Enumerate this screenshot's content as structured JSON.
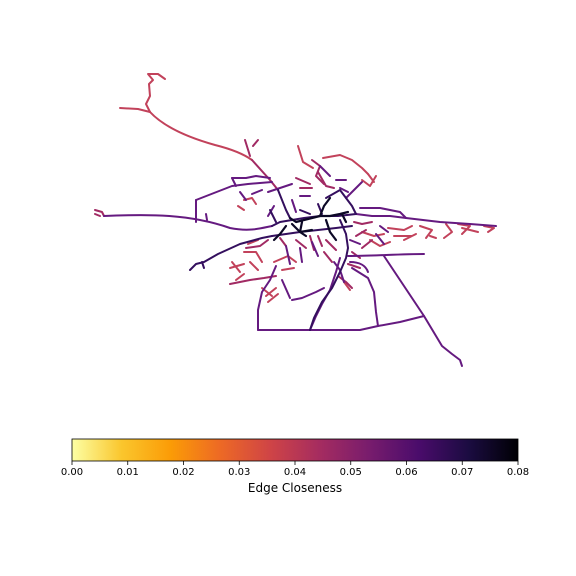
{
  "map": {
    "road_colors": {
      "outer": "#c2425b",
      "mid": "#a12a63",
      "central": "#651a80",
      "core": "#340f5e",
      "hub": "#0c0826"
    }
  },
  "colorbar": {
    "label": "Edge Closeness",
    "colormap": "inferno",
    "range": [
      0.0,
      0.08
    ],
    "ticks": [
      "0.00",
      "0.01",
      "0.02",
      "0.03",
      "0.04",
      "0.05",
      "0.06",
      "0.07",
      "0.08"
    ],
    "stops": [
      "#fcffa4",
      "#fac62d",
      "#fb9b06",
      "#ed6925",
      "#cf4446",
      "#a52c60",
      "#781c6d",
      "#4a0c6b",
      "#1b0c41",
      "#000004"
    ]
  }
}
